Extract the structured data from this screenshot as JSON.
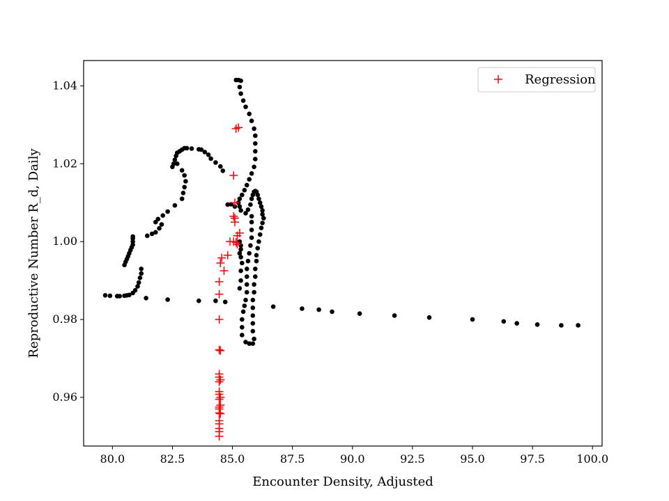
{
  "chart_data": {
    "type": "scatter",
    "xlabel": "Encounter Density, Adjusted",
    "ylabel": "Reproductive Number R_d, Daily",
    "xlim": [
      78.8,
      100.4
    ],
    "ylim": [
      0.9475,
      1.0465
    ],
    "xticks": [
      80.0,
      82.5,
      85.0,
      87.5,
      90.0,
      92.5,
      95.0,
      97.5,
      100.0
    ],
    "xtick_labels": [
      "80.0",
      "82.5",
      "85.0",
      "87.5",
      "90.0",
      "92.5",
      "95.0",
      "97.5",
      "100.0"
    ],
    "yticks": [
      0.96,
      0.98,
      1.0,
      1.02,
      1.04
    ],
    "ytick_labels": [
      "0.96",
      "0.98",
      "1.00",
      "1.02",
      "1.04"
    ],
    "grid": false,
    "legend": {
      "position": "top-right",
      "entries": [
        "Regression"
      ]
    },
    "colors": {
      "observed": "#000000",
      "regression": "#ff0000"
    },
    "series": [
      {
        "marker": "circle",
        "color": "#000000",
        "points": [
          [
            79.7,
            0.9862
          ],
          [
            79.9,
            0.9861
          ],
          [
            80.2,
            0.986
          ],
          [
            80.3,
            0.986
          ],
          [
            80.5,
            0.9861
          ],
          [
            80.6,
            0.9862
          ],
          [
            80.7,
            0.9863
          ],
          [
            80.85,
            0.9868
          ],
          [
            80.95,
            0.9875
          ],
          [
            81.05,
            0.9885
          ],
          [
            81.1,
            0.9895
          ],
          [
            81.15,
            0.9907
          ],
          [
            81.2,
            0.9918
          ],
          [
            81.2,
            0.993
          ],
          [
            80.5,
            0.994
          ],
          [
            80.55,
            0.9948
          ],
          [
            80.6,
            0.9955
          ],
          [
            80.65,
            0.9962
          ],
          [
            80.7,
            0.997
          ],
          [
            80.75,
            0.9978
          ],
          [
            80.8,
            0.9985
          ],
          [
            80.85,
            0.9992
          ],
          [
            80.85,
            1.0
          ],
          [
            80.85,
            1.0008
          ],
          [
            80.85,
            1.0013
          ],
          [
            81.45,
            1.0015
          ],
          [
            81.65,
            1.002
          ],
          [
            81.8,
            1.0024
          ],
          [
            81.95,
            1.0034
          ],
          [
            82.05,
            1.0044
          ],
          [
            81.8,
            1.005
          ],
          [
            81.9,
            1.0058
          ],
          [
            82.1,
            1.0067
          ],
          [
            82.3,
            1.0077
          ],
          [
            82.6,
            1.0093
          ],
          [
            82.9,
            1.011
          ],
          [
            82.95,
            1.0125
          ],
          [
            83.0,
            1.014
          ],
          [
            83.05,
            1.0155
          ],
          [
            83.0,
            1.017
          ],
          [
            82.9,
            1.0183
          ],
          [
            82.7,
            1.02
          ],
          [
            82.5,
            1.0192
          ],
          [
            82.55,
            1.02
          ],
          [
            82.6,
            1.021
          ],
          [
            82.65,
            1.022
          ],
          [
            82.7,
            1.0228
          ],
          [
            82.8,
            1.0232
          ],
          [
            82.9,
            1.0236
          ],
          [
            83.0,
            1.024
          ],
          [
            83.1,
            1.024
          ],
          [
            83.3,
            1.0239
          ],
          [
            83.6,
            1.0237
          ],
          [
            83.7,
            1.0236
          ],
          [
            83.85,
            1.023
          ],
          [
            84.0,
            1.0223
          ],
          [
            84.1,
            1.0213
          ],
          [
            84.3,
            1.0203
          ],
          [
            84.5,
            1.0193
          ],
          [
            84.6,
            1.0182
          ],
          [
            84.8,
            1.0095
          ],
          [
            84.95,
            1.0096
          ],
          [
            85.1,
            1.009
          ],
          [
            85.15,
            1.0415
          ],
          [
            85.25,
            1.0415
          ],
          [
            85.35,
            1.0413
          ],
          [
            85.3,
            1.0397
          ],
          [
            85.35,
            1.038
          ],
          [
            85.45,
            1.0362
          ],
          [
            85.55,
            1.0346
          ],
          [
            85.7,
            1.0328
          ],
          [
            85.8,
            1.031
          ],
          [
            85.9,
            1.029
          ],
          [
            85.95,
            1.0272
          ],
          [
            85.95,
            1.0252
          ],
          [
            85.95,
            1.0232
          ],
          [
            85.95,
            1.0212
          ],
          [
            85.9,
            1.0192
          ],
          [
            85.8,
            1.0175
          ],
          [
            85.7,
            1.016
          ],
          [
            85.6,
            1.0145
          ],
          [
            85.5,
            1.0132
          ],
          [
            85.4,
            1.012
          ],
          [
            85.3,
            1.011
          ],
          [
            85.25,
            1.01
          ],
          [
            85.3,
            1.009
          ],
          [
            85.35,
            1.008
          ],
          [
            85.55,
            1.0073
          ],
          [
            85.65,
            1.0082
          ],
          [
            85.75,
            1.0095
          ],
          [
            85.8,
            1.011
          ],
          [
            85.85,
            1.012
          ],
          [
            85.9,
            1.0128
          ],
          [
            85.95,
            1.013
          ],
          [
            86.0,
            1.0128
          ],
          [
            86.05,
            1.012
          ],
          [
            86.1,
            1.011
          ],
          [
            86.15,
            1.01
          ],
          [
            86.2,
            1.009
          ],
          [
            86.25,
            1.008
          ],
          [
            86.25,
            1.007
          ],
          [
            86.3,
            1.006
          ],
          [
            86.25,
            1.0048
          ],
          [
            86.2,
            1.0035
          ],
          [
            86.15,
            1.0018
          ],
          [
            86.1,
            1.0
          ],
          [
            86.05,
            0.9983
          ],
          [
            86.0,
            0.9965
          ],
          [
            86.0,
            0.995
          ],
          [
            85.95,
            0.993
          ],
          [
            85.95,
            0.991
          ],
          [
            85.9,
            0.989
          ],
          [
            85.9,
            0.987
          ],
          [
            85.85,
            0.985
          ],
          [
            85.85,
            0.983
          ],
          [
            85.85,
            0.981
          ],
          [
            85.85,
            0.979
          ],
          [
            85.85,
            0.977
          ],
          [
            85.9,
            0.975
          ],
          [
            85.85,
            0.9738
          ],
          [
            85.7,
            0.9738
          ],
          [
            85.55,
            0.9742
          ],
          [
            85.4,
            0.976
          ],
          [
            85.4,
            0.978
          ],
          [
            85.4,
            0.98
          ],
          [
            85.45,
            0.982
          ],
          [
            85.5,
            0.9835
          ],
          [
            85.55,
            0.985
          ],
          [
            85.6,
            0.987
          ],
          [
            85.6,
            0.989
          ],
          [
            85.6,
            0.991
          ],
          [
            85.6,
            0.993
          ],
          [
            85.65,
            0.995
          ],
          [
            85.7,
            0.997
          ],
          [
            85.75,
            0.999
          ],
          [
            85.8,
            1.001
          ],
          [
            85.8,
            1.003
          ],
          [
            85.8,
            1.005
          ],
          [
            85.8,
            1.0065
          ],
          [
            85.3,
            1.0
          ],
          [
            85.35,
            0.999
          ],
          [
            85.35,
            0.998
          ],
          [
            85.3,
            0.997
          ],
          [
            85.35,
            0.996
          ],
          [
            85.4,
            0.9945
          ],
          [
            85.35,
            0.9925
          ],
          [
            85.35,
            0.99
          ],
          [
            85.3,
            0.988
          ],
          [
            84.7,
            0.9845
          ],
          [
            84.3,
            0.9848
          ],
          [
            83.6,
            0.9848
          ],
          [
            82.3,
            0.9851
          ],
          [
            81.4,
            0.9855
          ],
          [
            86.7,
            0.9833
          ],
          [
            87.9,
            0.9828
          ],
          [
            88.6,
            0.9825
          ],
          [
            89.15,
            0.982
          ],
          [
            90.3,
            0.9815
          ],
          [
            91.75,
            0.981
          ],
          [
            93.2,
            0.9805
          ],
          [
            95.0,
            0.98
          ],
          [
            96.3,
            0.9795
          ],
          [
            96.85,
            0.979
          ],
          [
            97.7,
            0.9787
          ],
          [
            98.7,
            0.9785
          ],
          [
            99.4,
            0.9785
          ]
        ]
      },
      {
        "name": "Regression",
        "marker": "plus",
        "color": "#ff0000",
        "points": [
          [
            85.15,
            1.029
          ],
          [
            85.25,
            1.0293
          ],
          [
            85.05,
            1.017
          ],
          [
            85.1,
            1.01
          ],
          [
            85.05,
            1.0065
          ],
          [
            85.1,
            1.006
          ],
          [
            85.1,
            1.005
          ],
          [
            85.3,
            1.0022
          ],
          [
            85.2,
            1.0015
          ],
          [
            84.9,
            1.0
          ],
          [
            85.05,
            1.0
          ],
          [
            85.15,
            0.9998
          ],
          [
            85.2,
            0.9993
          ],
          [
            84.8,
            0.9965
          ],
          [
            84.55,
            0.9958
          ],
          [
            84.5,
            0.9945
          ],
          [
            84.65,
            0.9925
          ],
          [
            84.45,
            0.9897
          ],
          [
            84.45,
            0.9865
          ],
          [
            84.45,
            0.98
          ],
          [
            84.45,
            0.9722
          ],
          [
            84.5,
            0.972
          ],
          [
            84.45,
            0.966
          ],
          [
            84.45,
            0.9652
          ],
          [
            84.5,
            0.9645
          ],
          [
            84.45,
            0.964
          ],
          [
            84.45,
            0.9615
          ],
          [
            84.45,
            0.9608
          ],
          [
            84.5,
            0.96
          ],
          [
            84.45,
            0.9595
          ],
          [
            84.5,
            0.958
          ],
          [
            84.45,
            0.9575
          ],
          [
            84.45,
            0.957
          ],
          [
            84.45,
            0.956
          ],
          [
            84.5,
            0.9558
          ],
          [
            84.45,
            0.954
          ],
          [
            84.45,
            0.9532
          ],
          [
            84.45,
            0.952
          ],
          [
            84.45,
            0.9512
          ],
          [
            84.45,
            0.95
          ]
        ]
      }
    ]
  }
}
